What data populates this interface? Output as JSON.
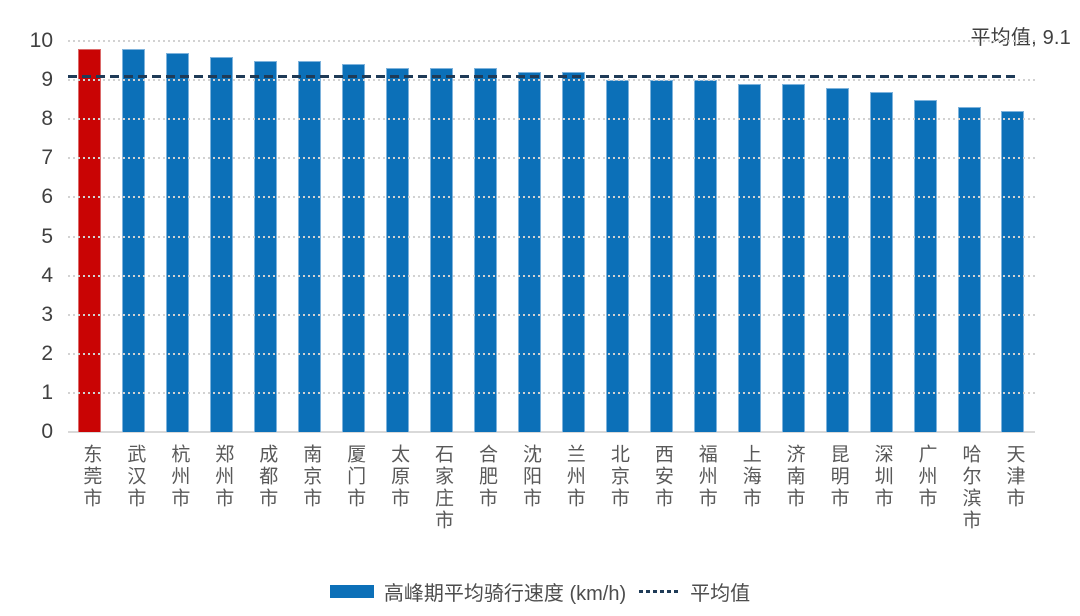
{
  "chart_data": {
    "type": "bar",
    "title": "",
    "categories": [
      "东莞市",
      "武汉市",
      "杭州市",
      "郑州市",
      "成都市",
      "南京市",
      "厦门市",
      "太原市",
      "石家庄市",
      "合肥市",
      "沈阳市",
      "兰州市",
      "北京市",
      "西安市",
      "福州市",
      "上海市",
      "济南市",
      "昆明市",
      "深圳市",
      "广州市",
      "哈尔滨市",
      "天津市"
    ],
    "values": [
      9.8,
      9.8,
      9.7,
      9.6,
      9.5,
      9.5,
      9.4,
      9.3,
      9.3,
      9.3,
      9.2,
      9.2,
      9.0,
      9.0,
      9.0,
      8.9,
      8.9,
      8.8,
      8.7,
      8.5,
      8.3,
      8.2
    ],
    "highlight_index": 0,
    "average": 9.1,
    "average_label": "平均值, 9.1",
    "y_ticks": [
      "0",
      "1",
      "2",
      "3",
      "4",
      "5",
      "6",
      "7",
      "8",
      "9",
      "10"
    ],
    "ylim": [
      0,
      10
    ],
    "xlabel": "",
    "ylabel": "",
    "grid": "horizontal-dotted",
    "legend_position": "bottom",
    "legend": [
      {
        "label": "高峰期平均骑行速度 (km/h)",
        "marker": "bar"
      },
      {
        "label": "平均值",
        "marker": "dashed-line"
      }
    ],
    "colors": {
      "bar": "#0C70B8",
      "bar_edge": "#7EB3DC",
      "highlight": "#C90404",
      "highlight_edge": "#DB6A6A",
      "average_line": "#1F3B57",
      "gridline": "#D2D2D2",
      "axis_text": "#404040",
      "xlabel_text": "#595959"
    }
  }
}
